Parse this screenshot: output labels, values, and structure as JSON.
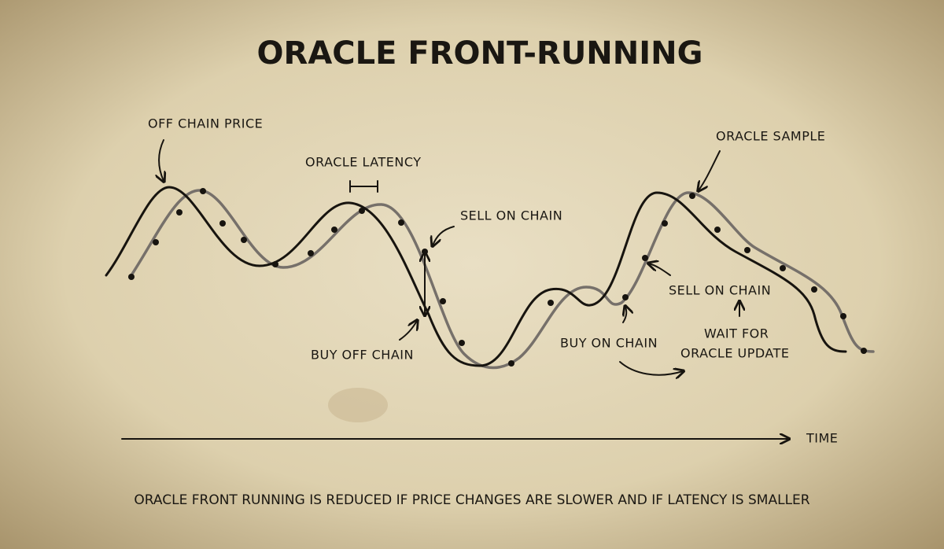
{
  "title": "ORACLE FRONT-RUNNING",
  "annotations": {
    "off_chain_price": "OFF CHAIN PRICE",
    "oracle_latency": "ORACLE LATENCY",
    "sell_on_chain_1": "SELL ON CHAIN",
    "buy_off_chain": "BUY OFF CHAIN",
    "buy_on_chain": "BUY ON CHAIN",
    "oracle_sample": "ORACLE SAMPLE",
    "sell_on_chain_2": "SELL ON CHAIN",
    "wait_for_line1": "WAIT FOR",
    "wait_for_line2": "ORACLE UPDATE"
  },
  "axis_label": "TIME",
  "caption": "ORACLE FRONT RUNNING IS REDUCED IF PRICE CHANGES ARE SLOWER AND IF LATENCY IS SMALLER"
}
